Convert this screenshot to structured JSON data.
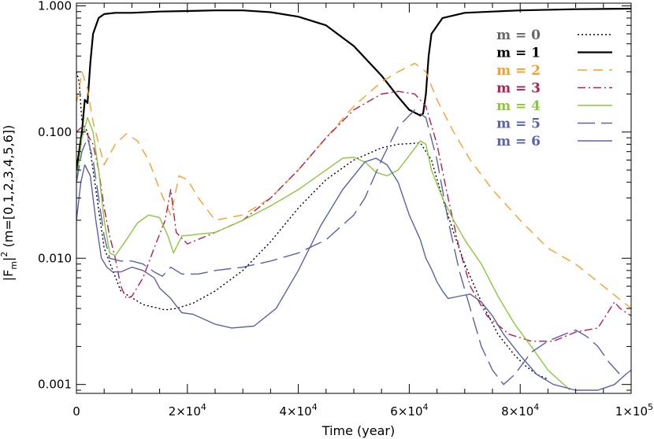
{
  "chart_data": {
    "type": "line",
    "title": "",
    "xlabel": "Time (year)",
    "ylabel": "|F_m|^2 (m=[0,1,2,3,4,5,6])",
    "xlim": [
      0,
      100000
    ],
    "ylim": [
      0.00085,
      1.05
    ],
    "y_scale": "log",
    "x_ticks": [
      {
        "value": 0,
        "label": "0"
      },
      {
        "value": 20000,
        "label": "2×10",
        "exp": "4"
      },
      {
        "value": 40000,
        "label": "4×10",
        "exp": "4"
      },
      {
        "value": 60000,
        "label": "6×10",
        "exp": "4"
      },
      {
        "value": 80000,
        "label": "8×10",
        "exp": "4"
      },
      {
        "value": 100000,
        "label": "1×10",
        "exp": "5"
      }
    ],
    "y_ticks": [
      {
        "value": 0.001,
        "label": "0.001"
      },
      {
        "value": 0.01,
        "label": "0.010"
      },
      {
        "value": 0.1,
        "label": "0.100"
      },
      {
        "value": 1,
        "label": "1.000"
      }
    ],
    "grid": false,
    "legend_position": "top-right",
    "series": [
      {
        "name": "m = 0",
        "color": "#000000",
        "dash": "2,3",
        "width": 1.4,
        "x": [
          0,
          500,
          1000,
          2000,
          3000,
          5000,
          8000,
          12000,
          16000,
          18000,
          21000,
          25000,
          30000,
          35000,
          40000,
          45000,
          50000,
          55000,
          58000,
          62000,
          64000,
          66000,
          68000,
          70000,
          73000,
          76000,
          79000,
          81000,
          83000,
          85000
        ],
        "y": [
          0.3,
          0.25,
          0.12,
          0.1,
          0.05,
          0.012,
          0.0055,
          0.0043,
          0.0039,
          0.004,
          0.0044,
          0.0055,
          0.008,
          0.0135,
          0.025,
          0.042,
          0.06,
          0.075,
          0.08,
          0.082,
          0.06,
          0.03,
          0.016,
          0.009,
          0.0045,
          0.0025,
          0.0017,
          0.0014,
          0.0012,
          0.0011
        ]
      },
      {
        "name": "m = 1",
        "color": "#000000",
        "dash": "",
        "width": 2.2,
        "x": [
          0,
          1000,
          1500,
          2000,
          2500,
          3000,
          4000,
          5000,
          7000,
          10000,
          15000,
          20000,
          25000,
          30000,
          35000,
          40000,
          45000,
          50000,
          55000,
          58000,
          60000,
          62000,
          62500,
          63000,
          63500,
          64000,
          66000,
          70000,
          75000,
          80000,
          90000,
          100000
        ],
        "y": [
          0.05,
          0.1,
          0.18,
          0.17,
          0.35,
          0.6,
          0.8,
          0.86,
          0.88,
          0.88,
          0.9,
          0.91,
          0.92,
          0.92,
          0.89,
          0.82,
          0.7,
          0.48,
          0.28,
          0.19,
          0.15,
          0.135,
          0.14,
          0.2,
          0.4,
          0.6,
          0.8,
          0.88,
          0.9,
          0.92,
          0.94,
          0.95
        ]
      },
      {
        "name": "m = 2",
        "color": "#f5a02c",
        "dash": "12,8",
        "width": 1.4,
        "x": [
          0,
          500,
          1000,
          2000,
          3000,
          5000,
          7000,
          9000,
          11000,
          13000,
          15000,
          17000,
          18500,
          20000,
          22000,
          25000,
          30000,
          35000,
          40000,
          45000,
          50000,
          55000,
          58000,
          61000,
          63000,
          65000,
          68000,
          71000,
          75000,
          80000,
          85000,
          90000,
          95000,
          100000
        ],
        "y": [
          0.17,
          0.22,
          0.3,
          0.22,
          0.12,
          0.055,
          0.08,
          0.097,
          0.085,
          0.06,
          0.035,
          0.022,
          0.045,
          0.042,
          0.03,
          0.02,
          0.022,
          0.03,
          0.05,
          0.09,
          0.16,
          0.25,
          0.3,
          0.35,
          0.3,
          0.18,
          0.1,
          0.06,
          0.035,
          0.02,
          0.012,
          0.009,
          0.006,
          0.004
        ]
      },
      {
        "name": "m = 3",
        "color": "#b0224e",
        "dash": "10,4,2,4",
        "width": 1.4,
        "x": [
          0,
          1000,
          2000,
          3000,
          4000,
          5000,
          6000,
          7000,
          8000,
          9000,
          10000,
          12000,
          14000,
          16000,
          17000,
          18000,
          20000,
          25000,
          30000,
          35000,
          40000,
          45000,
          50000,
          55000,
          58000,
          61000,
          63000,
          65000,
          67000,
          69000,
          71000,
          74000,
          78000,
          82000,
          86000,
          90000,
          94000,
          97000,
          98000,
          100000
        ],
        "y": [
          0.1,
          0.11,
          0.095,
          0.08,
          0.05,
          0.025,
          0.015,
          0.01,
          0.006,
          0.0048,
          0.005,
          0.007,
          0.012,
          0.02,
          0.035,
          0.016,
          0.013,
          0.016,
          0.02,
          0.03,
          0.05,
          0.09,
          0.15,
          0.2,
          0.21,
          0.2,
          0.16,
          0.08,
          0.03,
          0.012,
          0.006,
          0.0035,
          0.0025,
          0.0022,
          0.0022,
          0.0026,
          0.0028,
          0.0045,
          0.004,
          0.0035
        ]
      },
      {
        "name": "m = 4",
        "color": "#8dc63f",
        "dash": "",
        "width": 1.4,
        "x": [
          0,
          1000,
          2000,
          3000,
          4000,
          5000,
          6000,
          7000,
          9000,
          11000,
          13000,
          15000,
          16500,
          17500,
          19000,
          22000,
          25000,
          30000,
          35000,
          40000,
          45000,
          48000,
          50000,
          52000,
          54000,
          56000,
          58000,
          60000,
          62000,
          63000,
          64000,
          66000,
          68000,
          70000,
          73000,
          76000,
          79000,
          82000,
          85000,
          89000
        ],
        "y": [
          0.04,
          0.09,
          0.13,
          0.1,
          0.05,
          0.02,
          0.011,
          0.0105,
          0.014,
          0.019,
          0.022,
          0.021,
          0.015,
          0.011,
          0.015,
          0.0155,
          0.016,
          0.02,
          0.026,
          0.035,
          0.05,
          0.062,
          0.063,
          0.058,
          0.048,
          0.045,
          0.05,
          0.065,
          0.085,
          0.08,
          0.05,
          0.03,
          0.02,
          0.014,
          0.009,
          0.005,
          0.003,
          0.002,
          0.0013,
          0.0009
        ]
      },
      {
        "name": "m = 5",
        "color": "#5a62a8",
        "dash": "22,8",
        "width": 1.4,
        "x": [
          0,
          1000,
          2000,
          3000,
          4000,
          5000,
          6000,
          8000,
          10000,
          12000,
          14000,
          15500,
          17000,
          19000,
          22000,
          25000,
          30000,
          35000,
          40000,
          45000,
          50000,
          52000,
          55000,
          58000,
          61000,
          63000,
          65000,
          67000,
          69000,
          71000,
          73000,
          75000,
          77000,
          79000,
          82000,
          85000,
          88000,
          90000,
          92000,
          94000,
          96000,
          98000
        ],
        "y": [
          0.04,
          0.07,
          0.09,
          0.06,
          0.03,
          0.015,
          0.01,
          0.0095,
          0.0095,
          0.009,
          0.0078,
          0.0072,
          0.0085,
          0.0075,
          0.0075,
          0.008,
          0.0085,
          0.0095,
          0.011,
          0.014,
          0.022,
          0.03,
          0.06,
          0.11,
          0.15,
          0.13,
          0.06,
          0.02,
          0.008,
          0.004,
          0.002,
          0.0013,
          0.001,
          0.0012,
          0.0018,
          0.0022,
          0.0025,
          0.0027,
          0.0024,
          0.002,
          0.0015,
          0.0012
        ]
      },
      {
        "name": "m = 6",
        "color": "#5a62a8",
        "dash": "",
        "width": 1.4,
        "x": [
          0,
          800,
          1500,
          2500,
          3500,
          4500,
          5500,
          6500,
          8000,
          10000,
          12000,
          14000,
          15000,
          17000,
          18000,
          19000,
          21000,
          25000,
          28000,
          32000,
          36000,
          40000,
          44000,
          48000,
          52000,
          54000,
          56000,
          58000,
          60000,
          62000,
          63000,
          64000,
          65000,
          66000,
          67000,
          69000,
          71000,
          73000,
          75000,
          77000,
          80000,
          83000,
          86000,
          90000,
          94000,
          97000,
          99000,
          100000
        ],
        "y": [
          0.02,
          0.04,
          0.055,
          0.045,
          0.02,
          0.01,
          0.0085,
          0.0078,
          0.0078,
          0.0085,
          0.008,
          0.007,
          0.0058,
          0.0048,
          0.0042,
          0.0037,
          0.0036,
          0.003,
          0.0028,
          0.0029,
          0.004,
          0.008,
          0.018,
          0.035,
          0.058,
          0.062,
          0.055,
          0.04,
          0.022,
          0.014,
          0.01,
          0.0082,
          0.0065,
          0.0055,
          0.0048,
          0.005,
          0.0052,
          0.0045,
          0.0035,
          0.0025,
          0.0017,
          0.0012,
          0.001,
          0.0009,
          0.0009,
          0.001,
          0.0012,
          0.0013
        ]
      }
    ]
  }
}
